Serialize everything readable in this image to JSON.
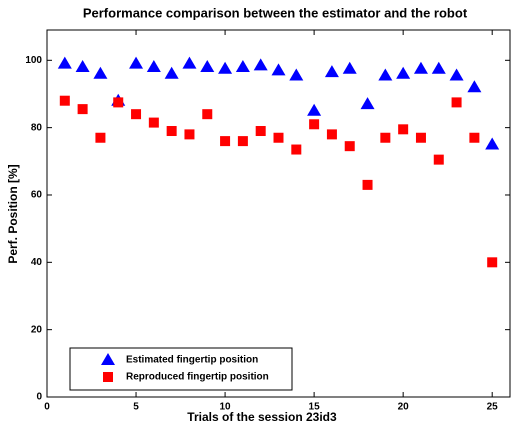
{
  "chart_data": {
    "type": "scatter",
    "title": "Performance comparison between the estimator and the robot",
    "x_label": "Trials of the session 23id3",
    "y_label": "Perf. Position [%]",
    "x": [
      1,
      2,
      3,
      4,
      5,
      6,
      7,
      8,
      9,
      10,
      11,
      12,
      13,
      14,
      15,
      16,
      17,
      18,
      19,
      20,
      21,
      22,
      23,
      24,
      25
    ],
    "series": [
      {
        "name": "Estimated fingertip position",
        "color": "#0000ff",
        "marker": "triangle",
        "values": [
          99,
          98,
          96,
          88,
          99,
          98,
          96,
          99,
          98,
          97.5,
          98,
          98.5,
          97,
          95.5,
          85,
          96.5,
          97.5,
          87,
          95.5,
          96,
          97.5,
          97.5,
          95.5,
          92,
          75
        ]
      },
      {
        "name": "Reproduced  fingertip position",
        "color": "#ff0000",
        "marker": "square",
        "values": [
          88,
          85.5,
          77,
          87.5,
          84,
          81.5,
          79,
          78,
          84,
          76,
          76,
          79,
          77,
          73.5,
          81,
          78,
          74.5,
          63,
          77,
          79.5,
          77,
          70.5,
          87.5,
          77,
          40
        ]
      }
    ],
    "xlim": [
      0,
      26
    ],
    "ylim": [
      0,
      109
    ],
    "xticks": [
      0,
      5,
      10,
      15,
      20,
      25
    ],
    "yticks": [
      0,
      20,
      40,
      60,
      80,
      100
    ],
    "legend": "lower-left"
  }
}
